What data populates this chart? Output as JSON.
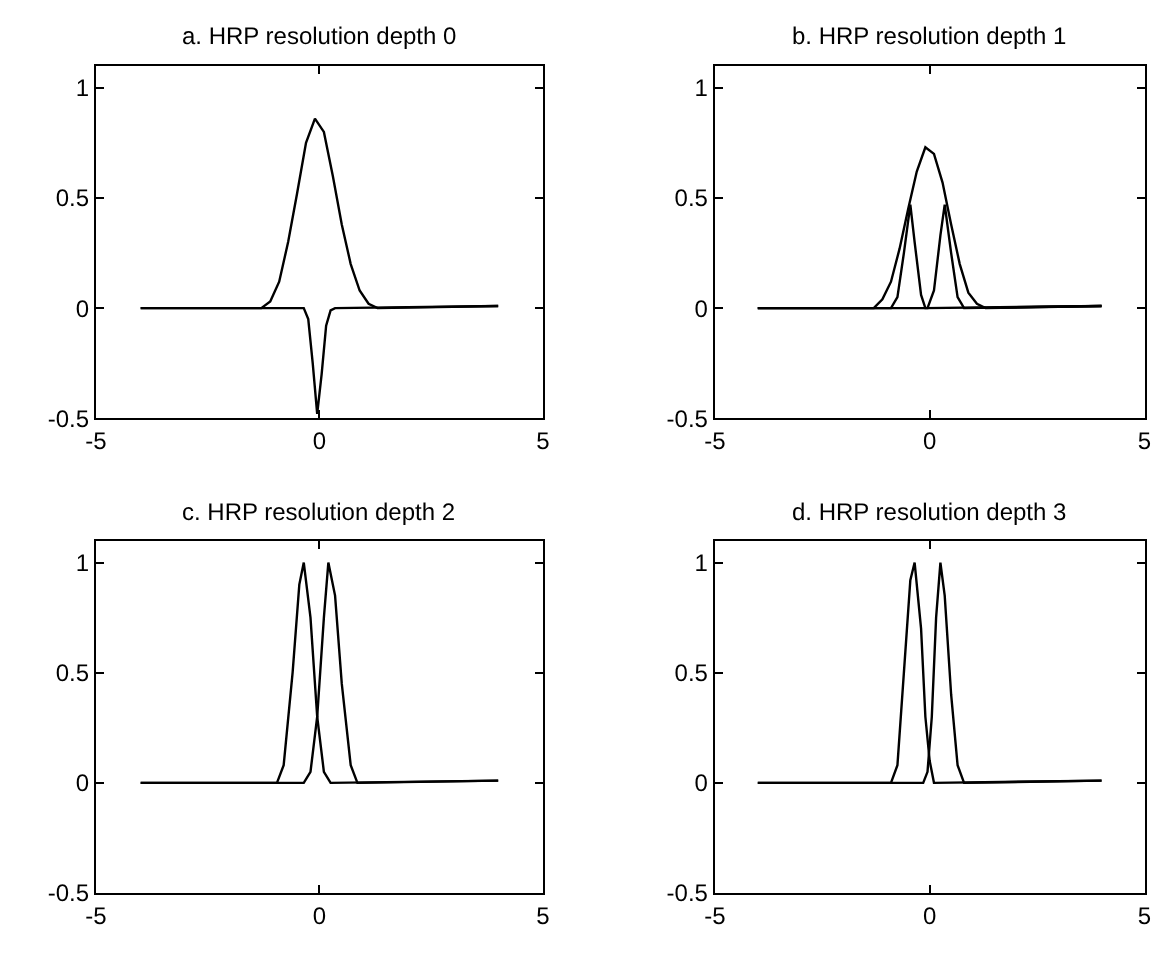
{
  "chart_data": [
    {
      "type": "line",
      "title": "a. HRP resolution depth 0",
      "xlim": [
        -5,
        5
      ],
      "ylim": [
        -0.5,
        1.1
      ],
      "xticks": [
        -5,
        0,
        5
      ],
      "yticks": [
        -0.5,
        0,
        0.5,
        1
      ],
      "grid": false,
      "series": [
        {
          "color": "#000000",
          "x": [
            -4,
            -1.3,
            -1.1,
            -0.9,
            -0.7,
            -0.5,
            -0.3,
            -0.1,
            0.1,
            0.3,
            0.5,
            0.7,
            0.9,
            1.1,
            1.3,
            4
          ],
          "values": [
            0,
            0,
            0.03,
            0.12,
            0.3,
            0.52,
            0.75,
            0.86,
            0.8,
            0.6,
            0.38,
            0.2,
            0.08,
            0.02,
            0,
            0.01
          ]
        },
        {
          "color": "#000000",
          "x": [
            -4,
            -0.35,
            -0.25,
            -0.15,
            -0.05,
            0.05,
            0.15,
            0.25,
            0.35,
            4
          ],
          "values": [
            0,
            0,
            -0.05,
            -0.25,
            -0.48,
            -0.3,
            -0.08,
            -0.01,
            0,
            0.01
          ]
        }
      ]
    },
    {
      "type": "line",
      "title": "b. HRP resolution depth 1",
      "xlim": [
        -5,
        5
      ],
      "ylim": [
        -0.5,
        1.1
      ],
      "xticks": [
        -5,
        0,
        5
      ],
      "yticks": [
        -0.5,
        0,
        0.5,
        1
      ],
      "grid": false,
      "series": [
        {
          "color": "#000000",
          "x": [
            -4,
            -1.3,
            -1.1,
            -0.9,
            -0.7,
            -0.5,
            -0.3,
            -0.1,
            0.1,
            0.3,
            0.5,
            0.7,
            0.9,
            1.1,
            1.3,
            4
          ],
          "values": [
            0,
            0,
            0.04,
            0.12,
            0.27,
            0.45,
            0.62,
            0.73,
            0.7,
            0.57,
            0.38,
            0.2,
            0.07,
            0.02,
            0,
            0.01
          ]
        },
        {
          "color": "#000000",
          "x": [
            -4,
            -0.9,
            -0.75,
            -0.6,
            -0.45,
            -0.35,
            -0.2,
            -0.1,
            4
          ],
          "values": [
            0,
            0,
            0.05,
            0.25,
            0.47,
            0.3,
            0.06,
            0,
            0.01
          ]
        },
        {
          "color": "#000000",
          "x": [
            -4,
            -0.05,
            0.1,
            0.25,
            0.35,
            0.5,
            0.65,
            0.8,
            4
          ],
          "values": [
            0,
            0,
            0.08,
            0.33,
            0.47,
            0.25,
            0.05,
            0,
            0.01
          ]
        }
      ]
    },
    {
      "type": "line",
      "title": "c. HRP resolution depth 2",
      "xlim": [
        -5,
        5
      ],
      "ylim": [
        -0.5,
        1.1
      ],
      "xticks": [
        -5,
        0,
        5
      ],
      "yticks": [
        -0.5,
        0,
        0.5,
        1
      ],
      "grid": false,
      "series": [
        {
          "color": "#000000",
          "x": [
            -4,
            -0.95,
            -0.8,
            -0.6,
            -0.45,
            -0.35,
            -0.2,
            -0.05,
            0.1,
            0.25,
            4
          ],
          "values": [
            0,
            0,
            0.08,
            0.5,
            0.9,
            1.0,
            0.75,
            0.3,
            0.05,
            0,
            0.01
          ]
        },
        {
          "color": "#000000",
          "x": [
            -4,
            -0.35,
            -0.2,
            -0.05,
            0.1,
            0.2,
            0.35,
            0.5,
            0.7,
            0.85,
            4
          ],
          "values": [
            0,
            0,
            0.05,
            0.3,
            0.75,
            1.0,
            0.85,
            0.45,
            0.08,
            0,
            0.01
          ]
        }
      ]
    },
    {
      "type": "line",
      "title": "d. HRP resolution depth 3",
      "xlim": [
        -5,
        5
      ],
      "ylim": [
        -0.5,
        1.1
      ],
      "xticks": [
        -5,
        0,
        5
      ],
      "yticks": [
        -0.5,
        0,
        0.5,
        1
      ],
      "grid": false,
      "series": [
        {
          "color": "#000000",
          "x": [
            -4,
            -0.9,
            -0.75,
            -0.6,
            -0.45,
            -0.35,
            -0.2,
            -0.1,
            0,
            0.1,
            4
          ],
          "values": [
            0,
            0,
            0.08,
            0.5,
            0.92,
            1.0,
            0.7,
            0.3,
            0.1,
            0,
            0.01
          ]
        },
        {
          "color": "#000000",
          "x": [
            -4,
            -0.15,
            -0.05,
            0.05,
            0.15,
            0.25,
            0.35,
            0.5,
            0.65,
            0.8,
            4
          ],
          "values": [
            0,
            0,
            0.05,
            0.3,
            0.75,
            1.0,
            0.85,
            0.4,
            0.08,
            0,
            0.01
          ]
        }
      ]
    }
  ]
}
